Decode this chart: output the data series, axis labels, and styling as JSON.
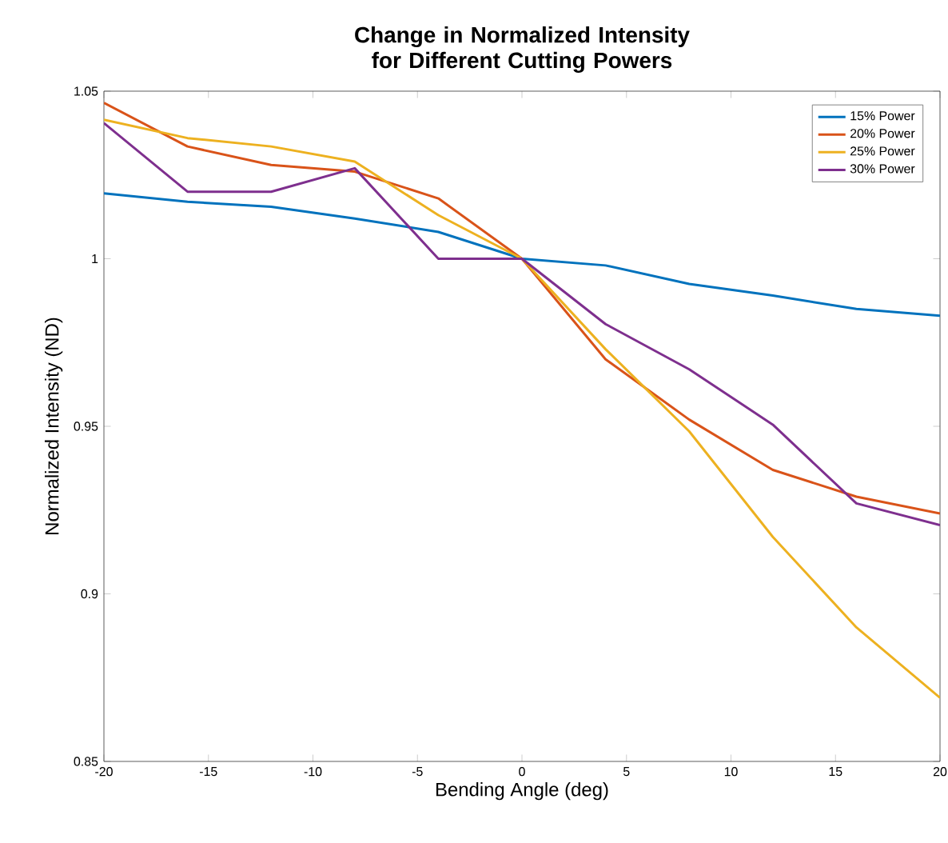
{
  "chart_data": {
    "type": "line",
    "title": "Change in Normalized Intensity for Different Cutting Powers",
    "xlabel": "Bending Angle (deg)",
    "ylabel": "Normalized Intensity (ND)",
    "x": [
      -20,
      -16,
      -12,
      -8,
      -4,
      0,
      4,
      8,
      12,
      16,
      20
    ],
    "series": [
      {
        "name": "15% Power",
        "color": "#0072bd",
        "values": [
          1.0195,
          1.017,
          1.0155,
          1.012,
          1.008,
          1.0,
          0.998,
          0.9925,
          0.989,
          0.985,
          0.983
        ]
      },
      {
        "name": "20% Power",
        "color": "#d95319",
        "values": [
          1.0465,
          1.0335,
          1.028,
          1.026,
          1.018,
          1.0,
          0.97,
          0.952,
          0.937,
          0.929,
          0.924
        ]
      },
      {
        "name": "25% Power",
        "color": "#edb120",
        "values": [
          1.0415,
          1.036,
          1.0335,
          1.029,
          1.013,
          1.0,
          0.973,
          0.9485,
          0.917,
          0.89,
          0.869
        ]
      },
      {
        "name": "30% Power",
        "color": "#7e2f8e",
        "values": [
          1.0405,
          1.02,
          1.02,
          1.027,
          1.0,
          1.0,
          0.9805,
          0.967,
          0.9505,
          0.927,
          0.9205
        ]
      }
    ],
    "xlim": [
      -20,
      20
    ],
    "xticks": [
      -20,
      -15,
      -10,
      -5,
      0,
      5,
      10,
      15,
      20
    ],
    "ylim": [
      0.85,
      1.05
    ],
    "yticks": [
      0.85,
      0.9,
      0.95,
      1,
      1.05
    ],
    "legend": "top right",
    "grid": false,
    "marker": "none",
    "line_style": "solid"
  }
}
